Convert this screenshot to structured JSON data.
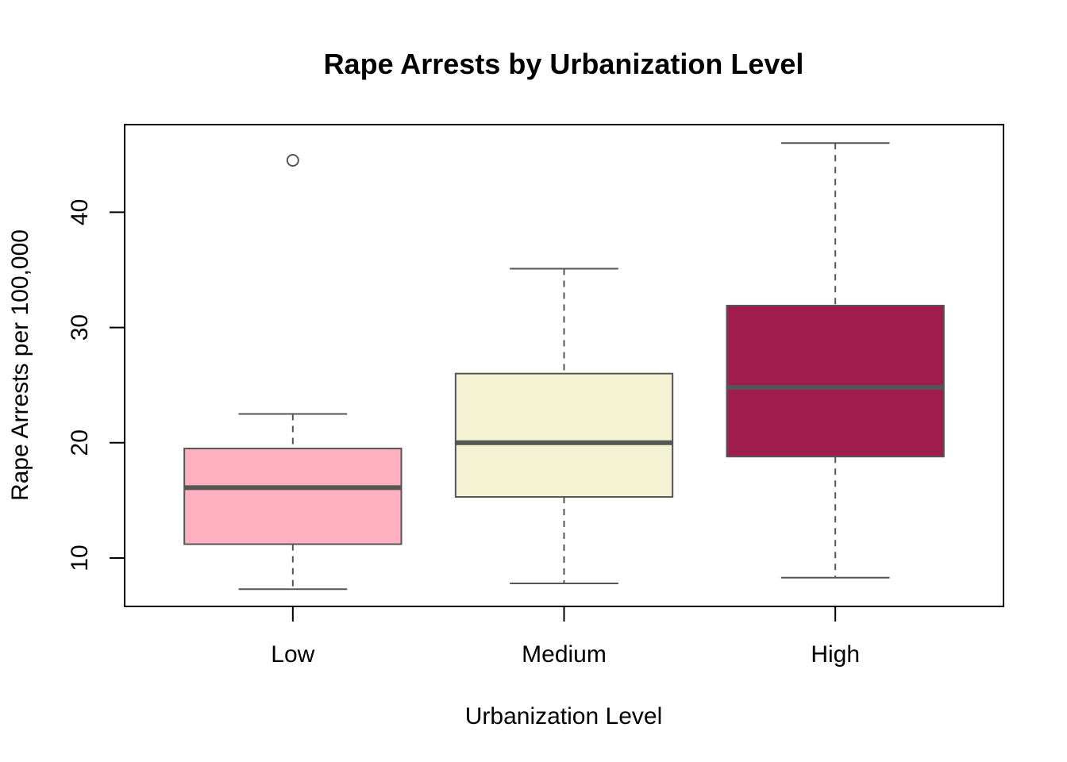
{
  "chart_data": {
    "type": "boxplot",
    "title": "Rape Arrests by Urbanization Level",
    "xlabel": "Urbanization Level",
    "ylabel": "Rape Arrests per 100,000",
    "categories": [
      "Low",
      "Medium",
      "High"
    ],
    "ylim": [
      5.8,
      47.6
    ],
    "yticks": [
      10,
      20,
      30,
      40
    ],
    "ytick_labels": [
      "10",
      "20",
      "30",
      "40"
    ],
    "grid": false,
    "boxes": [
      {
        "category": "Low",
        "whisker_low": 7.3,
        "q1": 11.2,
        "median": 16.1,
        "q3": 19.5,
        "whisker_high": 22.5,
        "outliers": [
          44.5
        ],
        "color": "#FFB0C1"
      },
      {
        "category": "Medium",
        "whisker_low": 7.8,
        "q1": 15.3,
        "median": 20.0,
        "q3": 26.0,
        "whisker_high": 35.1,
        "outliers": [],
        "color": "#F3F2D3"
      },
      {
        "category": "High",
        "whisker_low": 8.3,
        "q1": 18.8,
        "median": 24.8,
        "q3": 31.9,
        "whisker_high": 46.0,
        "outliers": [],
        "color": "#A01C4D"
      }
    ]
  }
}
